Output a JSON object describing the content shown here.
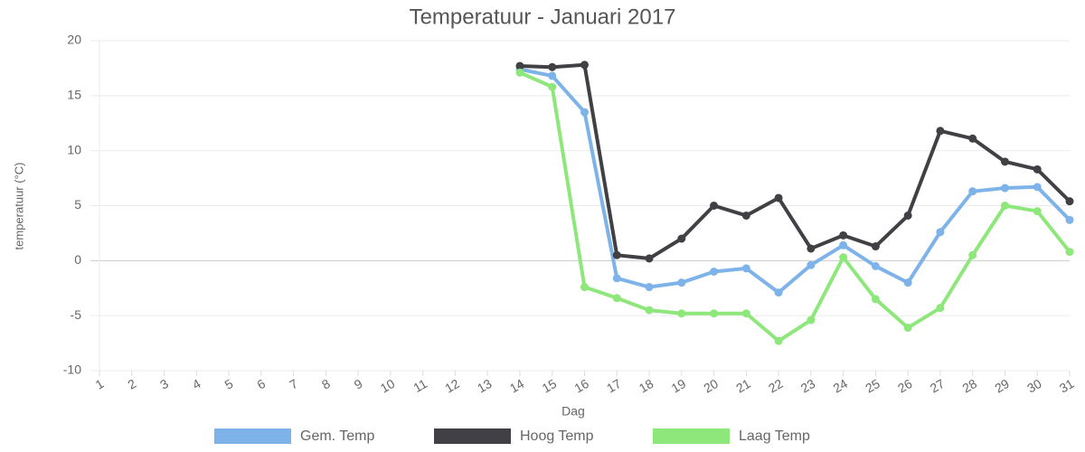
{
  "chart_data": {
    "type": "line",
    "title": "Temperatuur - Januari 2017",
    "x_label": "Dag",
    "y_label": "temperatuur (°C)",
    "categories": [
      "1",
      "2",
      "3",
      "4",
      "5",
      "6",
      "7",
      "8",
      "9",
      "10",
      "11",
      "12",
      "13",
      "14",
      "15",
      "16",
      "17",
      "18",
      "19",
      "20",
      "21",
      "22",
      "23",
      "24",
      "25",
      "26",
      "27",
      "28",
      "29",
      "30",
      "31"
    ],
    "series": [
      {
        "name": "Gem. Temp",
        "color": "#7db3e8",
        "values": [
          null,
          null,
          null,
          null,
          null,
          null,
          null,
          null,
          null,
          null,
          null,
          null,
          null,
          17.4,
          16.8,
          13.5,
          -1.6,
          -2.4,
          -2.0,
          -1.0,
          -0.7,
          -2.9,
          -0.4,
          1.4,
          -0.5,
          -2.0,
          2.6,
          6.3,
          6.6,
          6.7,
          3.7
        ]
      },
      {
        "name": "Hoog Temp",
        "color": "#404045",
        "values": [
          null,
          null,
          null,
          null,
          null,
          null,
          null,
          null,
          null,
          null,
          null,
          null,
          null,
          17.7,
          17.6,
          17.8,
          0.5,
          0.2,
          2.0,
          5.0,
          4.1,
          5.7,
          1.1,
          2.3,
          1.3,
          4.1,
          11.8,
          11.1,
          9.0,
          8.3,
          5.4
        ]
      },
      {
        "name": "Laag Temp",
        "color": "#8ee77a",
        "values": [
          null,
          null,
          null,
          null,
          null,
          null,
          null,
          null,
          null,
          null,
          null,
          null,
          null,
          17.1,
          15.8,
          -2.4,
          -3.4,
          -4.5,
          -4.8,
          -4.8,
          -4.8,
          -7.3,
          -5.4,
          0.3,
          -3.5,
          -6.1,
          -4.3,
          0.5,
          5.0,
          4.5,
          0.8
        ]
      }
    ],
    "ylim": [
      -10,
      20
    ],
    "yticks": [
      -10,
      -5,
      0,
      5,
      10,
      15,
      20
    ],
    "grid": true,
    "legend": "bottom"
  }
}
